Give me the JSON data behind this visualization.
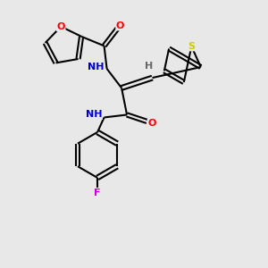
{
  "background_color": "#e8e8e8",
  "bond_color": "#000000",
  "atom_colors": {
    "O": "#ff0000",
    "N": "#0000cc",
    "S": "#cccc00",
    "F": "#cc00cc",
    "H": "#666666",
    "C": "#000000"
  },
  "figsize": [
    3.0,
    3.0
  ],
  "dpi": 100
}
